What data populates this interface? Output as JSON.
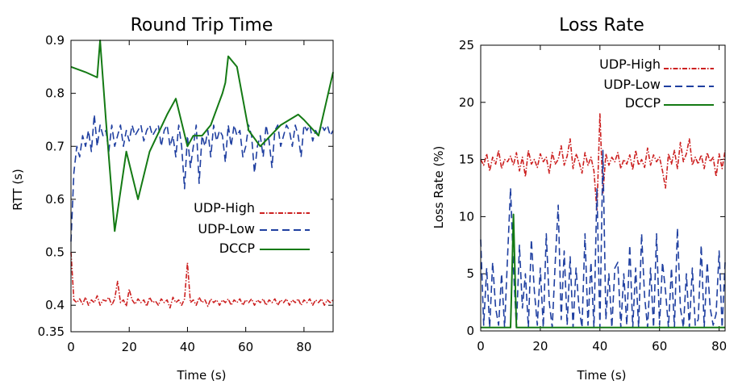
{
  "chart_data": [
    {
      "type": "line",
      "title": "Round Trip Time",
      "xlabel": "Time (s)",
      "ylabel": "RTT (s)",
      "xlim": [
        0,
        90
      ],
      "ylim": [
        0.35,
        0.9
      ],
      "x_ticks": [
        0,
        20,
        40,
        60,
        80
      ],
      "y_ticks": [
        0.35,
        0.4,
        0.5,
        0.6,
        0.7,
        0.8,
        0.9
      ],
      "x_tick_labels": [
        "0",
        "20",
        "40",
        "60",
        "80"
      ],
      "y_tick_labels": [
        "0.35",
        "0.4",
        "0.5",
        "0.6",
        "0.7",
        "0.8",
        "0.9"
      ],
      "legend_position": "middle-right",
      "series": [
        {
          "name": "UDP-High",
          "color": "#cc2020",
          "style": "dash-dot",
          "x": [
            0,
            1,
            2,
            3,
            4,
            5,
            6,
            7,
            8,
            9,
            10,
            11,
            12,
            13,
            14,
            15,
            16,
            17,
            18,
            19,
            20,
            21,
            22,
            23,
            24,
            25,
            26,
            27,
            28,
            29,
            30,
            31,
            32,
            33,
            34,
            35,
            36,
            37,
            38,
            39,
            40,
            41,
            42,
            43,
            44,
            45,
            46,
            47,
            48,
            49,
            50,
            51,
            52,
            53,
            54,
            55,
            56,
            57,
            58,
            59,
            60,
            61,
            62,
            63,
            64,
            65,
            66,
            67,
            68,
            69,
            70,
            71,
            72,
            73,
            74,
            75,
            76,
            77,
            78,
            79,
            80,
            81,
            82,
            83,
            84,
            85,
            86,
            87,
            88,
            89,
            90
          ],
          "y": [
            0.5,
            0.41,
            0.405,
            0.412,
            0.402,
            0.415,
            0.4,
            0.41,
            0.405,
            0.418,
            0.4,
            0.41,
            0.408,
            0.415,
            0.4,
            0.412,
            0.445,
            0.405,
            0.41,
            0.398,
            0.43,
            0.41,
            0.402,
            0.412,
            0.405,
            0.41,
            0.398,
            0.415,
            0.405,
            0.408,
            0.4,
            0.412,
            0.405,
            0.41,
            0.395,
            0.415,
            0.405,
            0.41,
            0.4,
            0.412,
            0.48,
            0.405,
            0.41,
            0.4,
            0.415,
            0.405,
            0.41,
            0.398,
            0.412,
            0.405,
            0.41,
            0.4,
            0.41,
            0.405,
            0.412,
            0.4,
            0.41,
            0.405,
            0.412,
            0.4,
            0.41,
            0.405,
            0.412,
            0.4,
            0.41,
            0.405,
            0.412,
            0.4,
            0.41,
            0.405,
            0.412,
            0.4,
            0.41,
            0.405,
            0.412,
            0.4,
            0.41,
            0.405,
            0.412,
            0.4,
            0.41,
            0.405,
            0.412,
            0.4,
            0.41,
            0.405,
            0.412,
            0.4,
            0.41,
            0.405,
            0.41
          ]
        },
        {
          "name": "UDP-Low",
          "color": "#1f3fa0",
          "style": "dashed",
          "x": [
            0,
            1,
            2,
            3,
            4,
            5,
            6,
            7,
            8,
            9,
            10,
            11,
            12,
            13,
            14,
            15,
            16,
            17,
            18,
            19,
            20,
            21,
            22,
            23,
            24,
            25,
            26,
            27,
            28,
            29,
            30,
            31,
            32,
            33,
            34,
            35,
            36,
            37,
            38,
            39,
            40,
            41,
            42,
            43,
            44,
            45,
            46,
            47,
            48,
            49,
            50,
            51,
            52,
            53,
            54,
            55,
            56,
            57,
            58,
            59,
            60,
            61,
            62,
            63,
            64,
            65,
            66,
            67,
            68,
            69,
            70,
            71,
            72,
            73,
            74,
            75,
            76,
            77,
            78,
            79,
            80,
            81,
            82,
            83,
            84,
            85,
            86,
            87,
            88,
            89,
            90
          ],
          "y": [
            0.52,
            0.65,
            0.7,
            0.68,
            0.72,
            0.7,
            0.73,
            0.69,
            0.76,
            0.7,
            0.74,
            0.72,
            0.73,
            0.69,
            0.74,
            0.7,
            0.72,
            0.74,
            0.7,
            0.73,
            0.71,
            0.74,
            0.72,
            0.73,
            0.74,
            0.71,
            0.73,
            0.74,
            0.72,
            0.73,
            0.74,
            0.7,
            0.73,
            0.74,
            0.7,
            0.72,
            0.68,
            0.74,
            0.7,
            0.62,
            0.72,
            0.66,
            0.7,
            0.74,
            0.63,
            0.72,
            0.7,
            0.73,
            0.68,
            0.74,
            0.71,
            0.73,
            0.72,
            0.67,
            0.74,
            0.7,
            0.74,
            0.72,
            0.73,
            0.68,
            0.7,
            0.74,
            0.72,
            0.65,
            0.7,
            0.72,
            0.68,
            0.74,
            0.71,
            0.66,
            0.73,
            0.74,
            0.7,
            0.72,
            0.74,
            0.73,
            0.7,
            0.74,
            0.72,
            0.68,
            0.74,
            0.73,
            0.74,
            0.71,
            0.73,
            0.72,
            0.74,
            0.73,
            0.74,
            0.72,
            0.73
          ]
        },
        {
          "name": "DCCP",
          "color": "#147a14",
          "style": "solid",
          "x": [
            0,
            5,
            9,
            10,
            12,
            15,
            19,
            23,
            27,
            33,
            36,
            40,
            42,
            45,
            48,
            52,
            53,
            54,
            57,
            61,
            65,
            72,
            78,
            80,
            85,
            90
          ],
          "y": [
            0.85,
            0.84,
            0.83,
            0.9,
            0.75,
            0.54,
            0.69,
            0.6,
            0.69,
            0.76,
            0.79,
            0.7,
            0.72,
            0.72,
            0.74,
            0.8,
            0.82,
            0.87,
            0.85,
            0.73,
            0.7,
            0.74,
            0.76,
            0.75,
            0.72,
            0.84
          ]
        }
      ]
    },
    {
      "type": "line",
      "title": "Loss Rate",
      "xlabel": "Time (s)",
      "ylabel": "Loss Rate (%)",
      "xlim": [
        0,
        82
      ],
      "ylim": [
        0,
        25
      ],
      "x_ticks": [
        0,
        20,
        40,
        60,
        80
      ],
      "y_ticks": [
        0,
        5,
        10,
        15,
        20,
        25
      ],
      "x_tick_labels": [
        "0",
        "20",
        "40",
        "60",
        "80"
      ],
      "y_tick_labels": [
        "0",
        "5",
        "10",
        "15",
        "20",
        "25"
      ],
      "legend_position": "top-right",
      "series": [
        {
          "name": "UDP-High",
          "color": "#cc2020",
          "style": "dash-dot",
          "x": [
            0,
            1,
            2,
            3,
            4,
            5,
            6,
            7,
            8,
            9,
            10,
            11,
            12,
            13,
            14,
            15,
            16,
            17,
            18,
            19,
            20,
            21,
            22,
            23,
            24,
            25,
            26,
            27,
            28,
            29,
            30,
            31,
            32,
            33,
            34,
            35,
            36,
            37,
            38,
            39,
            40,
            41,
            42,
            43,
            44,
            45,
            46,
            47,
            48,
            49,
            50,
            51,
            52,
            53,
            54,
            55,
            56,
            57,
            58,
            59,
            60,
            61,
            62,
            63,
            64,
            65,
            66,
            67,
            68,
            69,
            70,
            71,
            72,
            73,
            74,
            75,
            76,
            77,
            78,
            79,
            80,
            81,
            82
          ],
          "y": [
            15,
            14.5,
            15.5,
            14,
            15.2,
            14.6,
            15.8,
            14.2,
            15,
            14.8,
            15.3,
            14.5,
            15.6,
            14,
            15.2,
            13.5,
            15.8,
            14.6,
            15,
            14.3,
            15.5,
            14.8,
            15.2,
            13.8,
            15.6,
            14.6,
            15,
            16.2,
            14.5,
            15.3,
            16.8,
            14.2,
            15.5,
            14.8,
            13.8,
            15.6,
            14.5,
            15.2,
            14,
            10.5,
            19,
            12,
            15.5,
            14.5,
            15.2,
            14.8,
            15.6,
            14.2,
            15,
            14.6,
            15.4,
            14.1,
            15.8,
            14.5,
            15,
            14.3,
            16,
            14.5,
            15.4,
            14.8,
            15.2,
            14,
            12.5,
            15.5,
            14.6,
            15.8,
            14.2,
            16.5,
            14.8,
            15.5,
            16.8,
            14.5,
            15.2,
            14.6,
            15.4,
            14.2,
            15.6,
            14.8,
            15.2,
            13.5,
            15.5,
            14.2,
            15.8
          ]
        },
        {
          "name": "UDP-Low",
          "color": "#1f3fa0",
          "style": "dashed",
          "x": [
            0,
            1,
            2,
            3,
            4,
            5,
            6,
            7,
            8,
            9,
            10,
            11,
            12,
            13,
            14,
            15,
            16,
            17,
            18,
            19,
            20,
            21,
            22,
            23,
            24,
            25,
            26,
            27,
            28,
            29,
            30,
            31,
            32,
            33,
            34,
            35,
            36,
            37,
            38,
            39,
            40,
            41,
            42,
            43,
            44,
            45,
            46,
            47,
            48,
            49,
            50,
            51,
            52,
            53,
            54,
            55,
            56,
            57,
            58,
            59,
            60,
            61,
            62,
            63,
            64,
            65,
            66,
            67,
            68,
            69,
            70,
            71,
            72,
            73,
            74,
            75,
            76,
            77,
            78,
            79,
            80,
            81,
            82
          ],
          "y": [
            8,
            0.5,
            5.5,
            0.3,
            6,
            2,
            0.5,
            5,
            0.3,
            6.5,
            12.5,
            5.5,
            0.3,
            7.5,
            2,
            5,
            0.3,
            8,
            3.5,
            0.5,
            5.5,
            0.3,
            8.5,
            2.5,
            0.3,
            6,
            11,
            1,
            7,
            0.5,
            6.5,
            0.3,
            5.5,
            2,
            0.3,
            8.5,
            0.5,
            6,
            0.3,
            12.5,
            0.3,
            15.8,
            1,
            5,
            0.3,
            5.5,
            6,
            0.3,
            5,
            0.5,
            7.5,
            0.3,
            5.5,
            0.3,
            8.5,
            3,
            0.3,
            5.5,
            0.3,
            8.5,
            0.5,
            6,
            3.5,
            0.3,
            5.5,
            0.3,
            9,
            2,
            0.3,
            5,
            0.3,
            5.5,
            0.5,
            1,
            7.5,
            0.3,
            6,
            2,
            0.5,
            1.5,
            7,
            0.3,
            6
          ]
        },
        {
          "name": "DCCP",
          "color": "#147a14",
          "style": "solid",
          "x": [
            0,
            10,
            10.5,
            11,
            11.5,
            12,
            82
          ],
          "y": [
            0.3,
            0.3,
            5,
            10.2,
            5,
            0.3,
            0.3
          ]
        }
      ]
    }
  ]
}
